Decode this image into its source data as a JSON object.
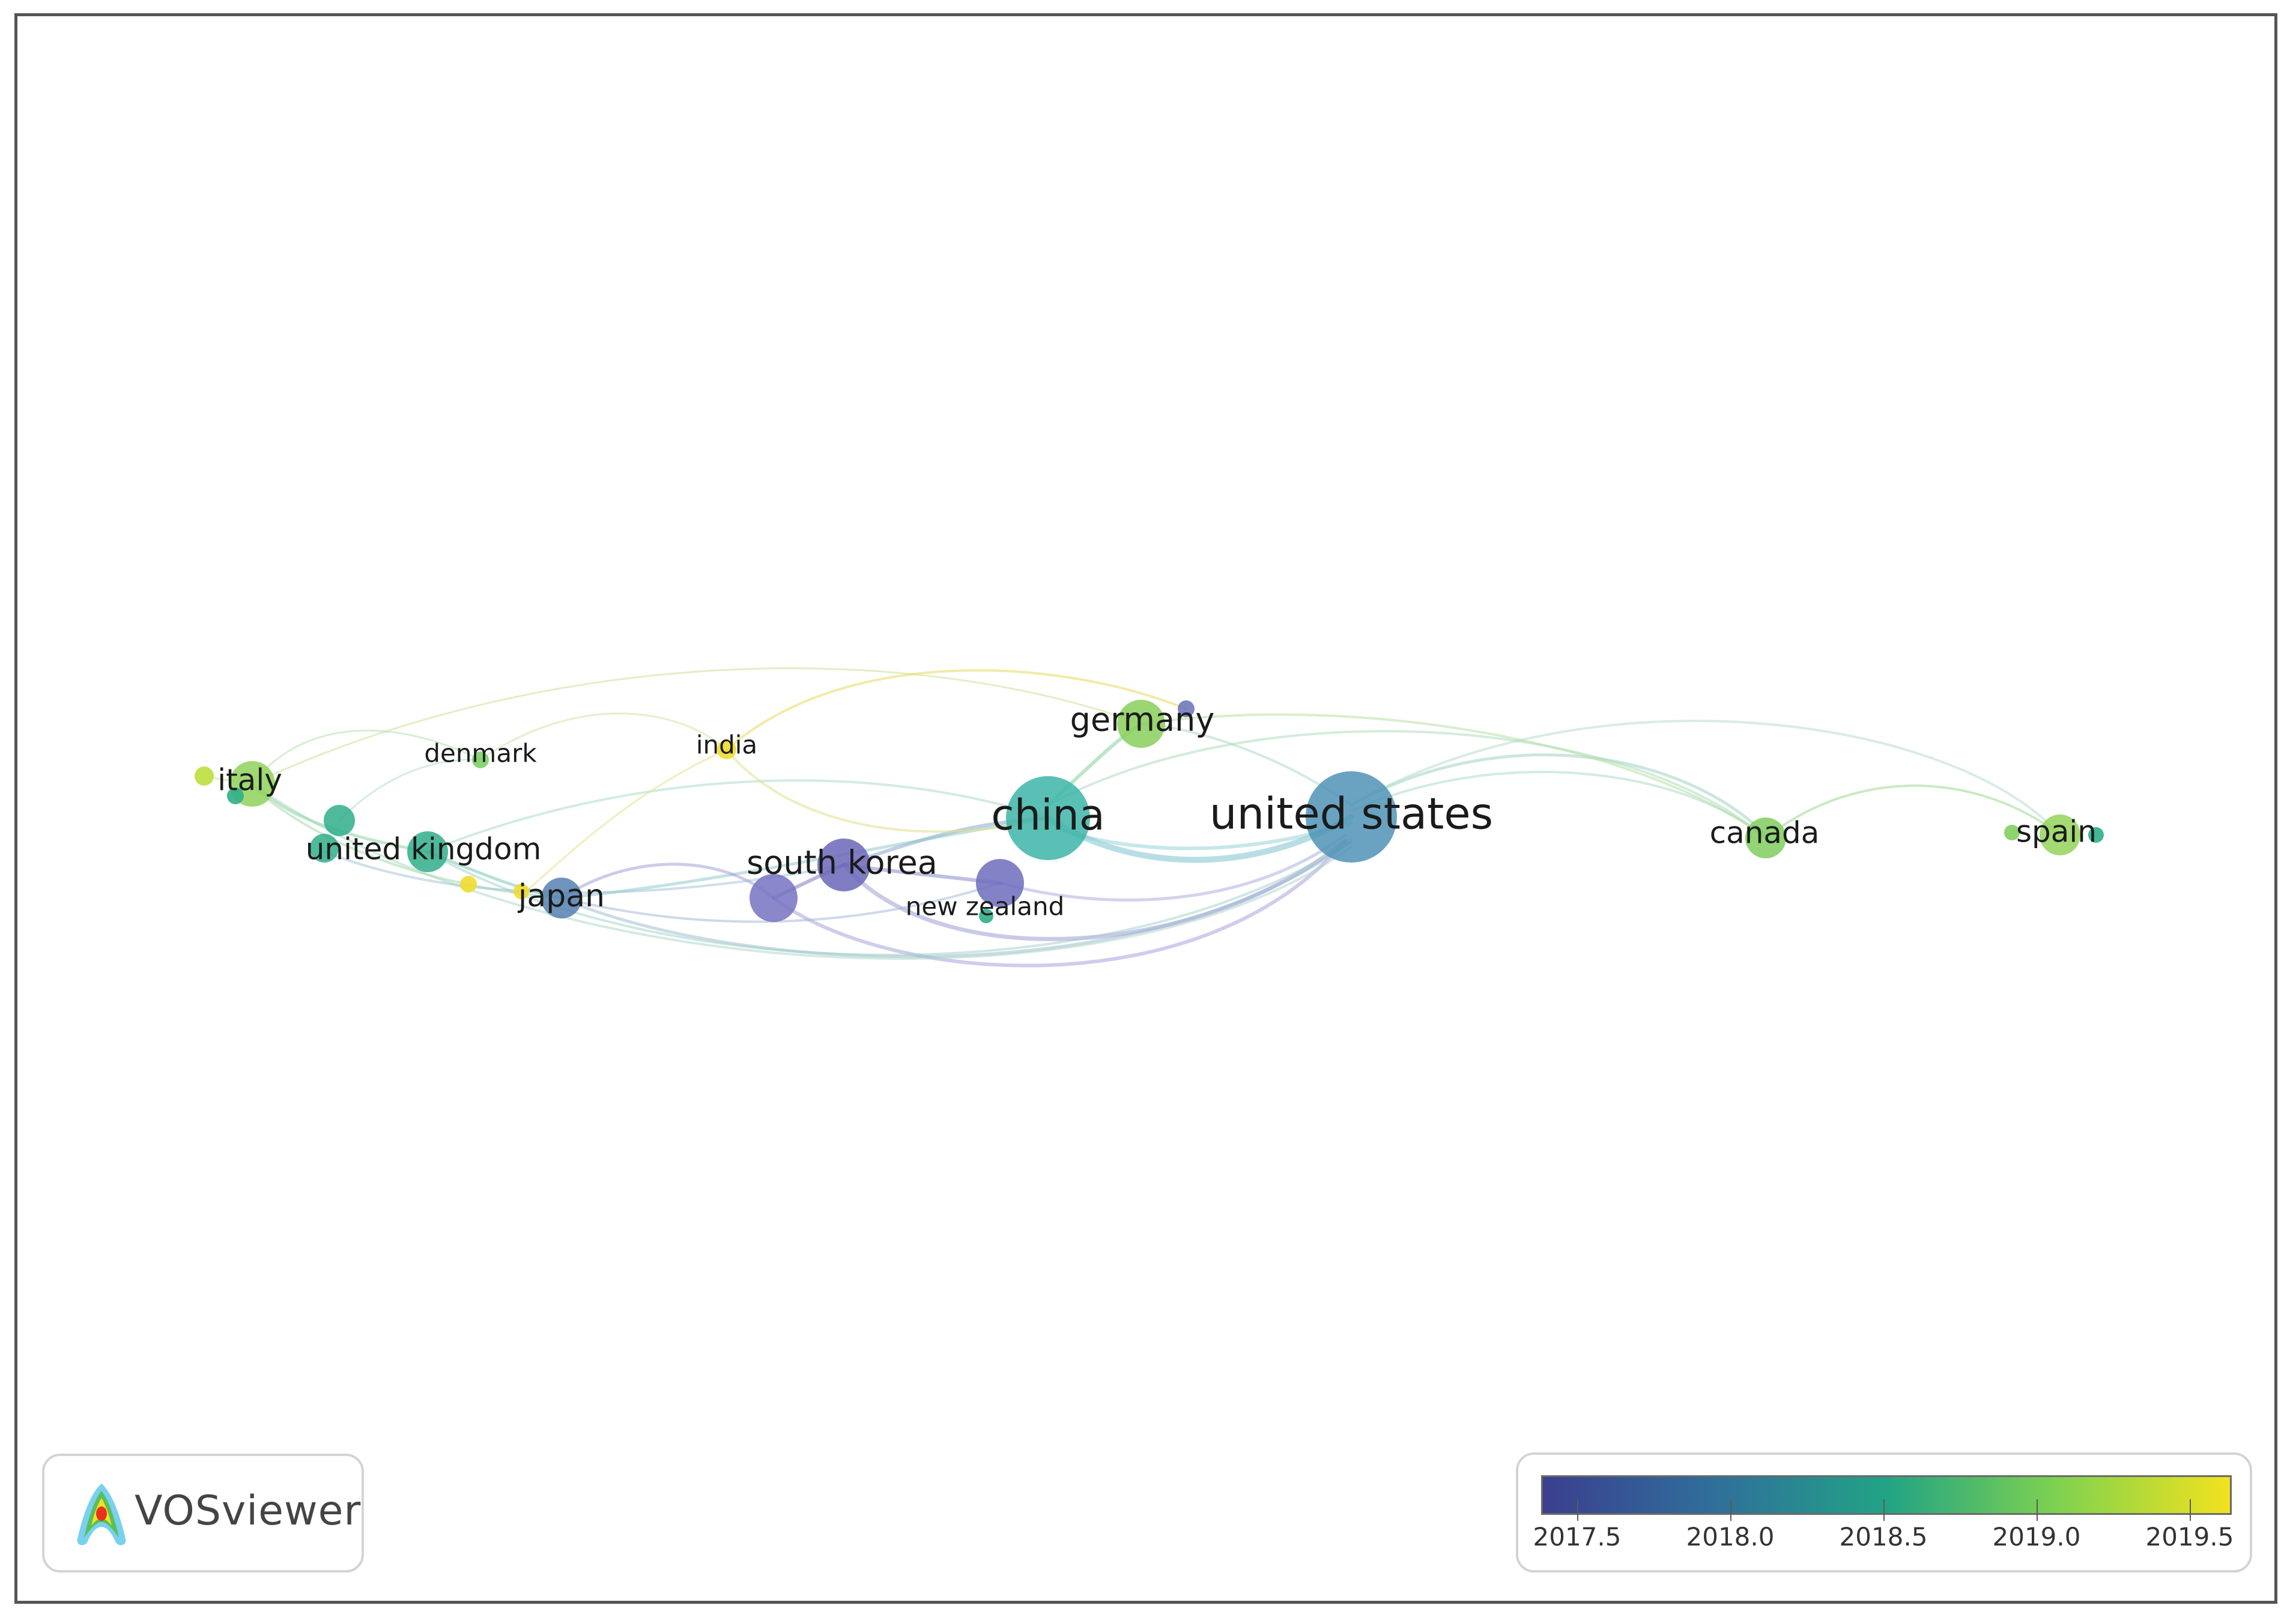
{
  "colors": {
    "frame_border": "#555555",
    "background": "#ffffff",
    "scale_stops": [
      "#3b3f8f",
      "#2f6f9a",
      "#22a386",
      "#7fd24f",
      "#f2e21e"
    ]
  },
  "nodes": [
    {
      "id": "united-states",
      "label": "united states",
      "year": 2018.0,
      "color": "#4f93b6"
    },
    {
      "id": "china",
      "label": "china",
      "year": 2018.4,
      "color": "#3db5a8"
    },
    {
      "id": "south-korea",
      "label": "south korea",
      "year": 2017.6,
      "color": "#6b66b8"
    },
    {
      "id": "south-korea-2",
      "label": "",
      "year": 2017.6,
      "color": "#7673c2"
    },
    {
      "id": "new-zealand",
      "label": "new zealand",
      "year": 2017.6,
      "color": "#6d6cbd"
    },
    {
      "id": "japan",
      "label": "japan",
      "year": 2017.9,
      "color": "#5580b0"
    },
    {
      "id": "germany",
      "label": "germany",
      "year": 2019.1,
      "color": "#88cf5a"
    },
    {
      "id": "canada",
      "label": "canada",
      "year": 2019.0,
      "color": "#7fcc5e"
    },
    {
      "id": "spain",
      "label": "spain",
      "year": 2019.1,
      "color": "#93d35a"
    },
    {
      "id": "italy",
      "label": "italy",
      "year": 2019.1,
      "color": "#8fd25a"
    },
    {
      "id": "united-kingdom",
      "label": "united kingdom",
      "year": 2018.5,
      "color": "#2fae8a"
    },
    {
      "id": "denmark",
      "label": "denmark",
      "year": 2019.0,
      "color": "#7ecf66"
    },
    {
      "id": "india",
      "label": "india",
      "year": 2019.6,
      "color": "#f0dd30"
    }
  ],
  "legend": {
    "ticks": [
      "2017.5",
      "2018.0",
      "2018.5",
      "2019.0",
      "2019.5"
    ]
  },
  "logo": {
    "text": "VOSviewer"
  }
}
